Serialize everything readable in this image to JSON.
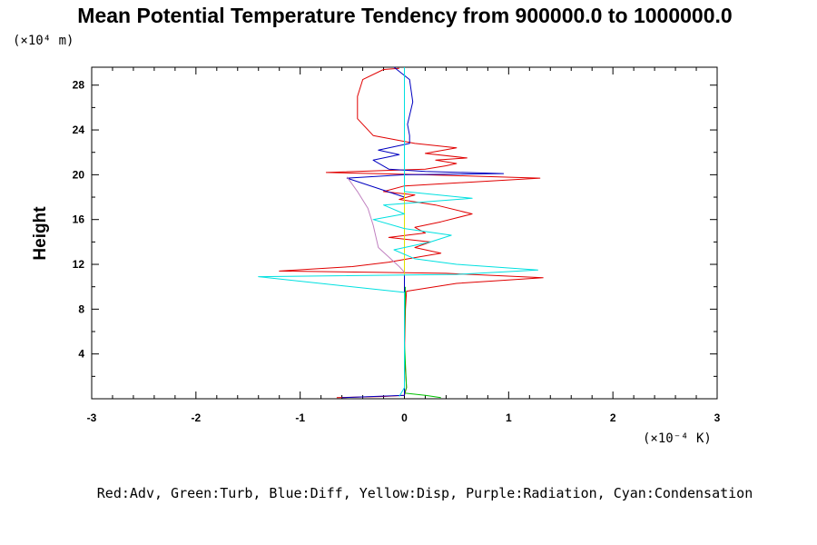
{
  "chart_data": {
    "type": "line",
    "title": "Mean Potential Temperature Tendency from 900000.0 to 1000000.0",
    "ylabel": "Height",
    "xlabel": "",
    "x_unit_label": "(×10⁻⁴ K)",
    "y_unit_label": "(×10⁴ m)",
    "xlim": [
      -3,
      3
    ],
    "ylim": [
      0,
      29.6
    ],
    "x_ticks": [
      "-3",
      "-2",
      "-1",
      "0",
      "1",
      "2",
      "3"
    ],
    "y_ticks": [
      "4",
      "8",
      "12",
      "16",
      "20",
      "24",
      "28"
    ],
    "grid": false,
    "legend_text": "Red:Adv, Green:Turb, Blue:Diff, Yellow:Disp, Purple:Radiation, Cyan:Condensation",
    "series": [
      {
        "name": "Adv",
        "color": "#e00000",
        "points": [
          [
            -0.65,
            0.1
          ],
          [
            -0.2,
            0.2
          ],
          [
            0.0,
            0.3
          ],
          [
            0.02,
            1
          ],
          [
            0.0,
            4
          ],
          [
            0.01,
            8
          ],
          [
            0.02,
            9.6
          ],
          [
            0.5,
            10.3
          ],
          [
            1.33,
            10.8
          ],
          [
            0.4,
            11.2
          ],
          [
            -0.3,
            11.3
          ],
          [
            -1.2,
            11.4
          ],
          [
            -0.5,
            11.8
          ],
          [
            -0.15,
            12.2
          ],
          [
            0.1,
            12.6
          ],
          [
            0.35,
            13.0
          ],
          [
            0.1,
            13.5
          ],
          [
            0.25,
            14.0
          ],
          [
            -0.15,
            14.4
          ],
          [
            0.2,
            14.8
          ],
          [
            0.1,
            15.3
          ],
          [
            0.35,
            15.8
          ],
          [
            0.65,
            16.5
          ],
          [
            0.3,
            17.3
          ],
          [
            -0.05,
            17.8
          ],
          [
            0.1,
            18.2
          ],
          [
            -0.2,
            18.5
          ],
          [
            0.0,
            19.0
          ],
          [
            1.3,
            19.7
          ],
          [
            0.2,
            20.0
          ],
          [
            -0.75,
            20.2
          ],
          [
            0.2,
            20.5
          ],
          [
            0.4,
            20.8
          ],
          [
            0.5,
            21.0
          ],
          [
            0.3,
            21.3
          ],
          [
            0.6,
            21.5
          ],
          [
            0.2,
            21.9
          ],
          [
            0.5,
            22.4
          ],
          [
            0.1,
            22.8
          ],
          [
            -0.3,
            23.5
          ],
          [
            -0.45,
            25.0
          ],
          [
            -0.45,
            27.0
          ],
          [
            -0.4,
            28.5
          ],
          [
            -0.2,
            29.4
          ],
          [
            -0.05,
            29.5
          ]
        ]
      },
      {
        "name": "Turb",
        "color": "#00c000",
        "points": [
          [
            0.35,
            0.1
          ],
          [
            0.2,
            0.3
          ],
          [
            0.0,
            0.5
          ],
          [
            0.02,
            1
          ],
          [
            0.0,
            5
          ],
          [
            0.01,
            10
          ]
        ]
      },
      {
        "name": "Diff",
        "color": "#0000c0",
        "points": [
          [
            -0.6,
            0.1
          ],
          [
            0.0,
            0.3
          ],
          [
            0.0,
            11
          ],
          [
            0.0,
            18
          ],
          [
            -0.55,
            19.7
          ],
          [
            0.0,
            20.0
          ],
          [
            0.95,
            20.1
          ],
          [
            0.2,
            20.3
          ],
          [
            -0.15,
            20.5
          ],
          [
            -0.3,
            21.3
          ],
          [
            -0.05,
            21.8
          ],
          [
            -0.25,
            22.2
          ],
          [
            0.05,
            22.8
          ],
          [
            0.05,
            23.5
          ],
          [
            0.03,
            24.5
          ],
          [
            0.08,
            26.5
          ],
          [
            0.05,
            28.5
          ],
          [
            -0.1,
            29.6
          ]
        ]
      },
      {
        "name": "Disp",
        "color": "#e0e000",
        "points": [
          [
            0.0,
            11
          ],
          [
            0.0,
            19
          ]
        ]
      },
      {
        "name": "Radiation",
        "color": "#c080c0",
        "points": [
          [
            -0.55,
            19.8
          ],
          [
            -0.45,
            18.5
          ],
          [
            -0.35,
            17.0
          ],
          [
            -0.3,
            15.5
          ],
          [
            -0.25,
            13.5
          ],
          [
            -0.05,
            11.8
          ],
          [
            0.0,
            11.3
          ]
        ]
      },
      {
        "name": "Condensation",
        "color": "#00e0e0",
        "points": [
          [
            -0.05,
            0.2
          ],
          [
            0.0,
            1.0
          ],
          [
            0.0,
            9.5
          ],
          [
            -1.4,
            10.9
          ],
          [
            0.5,
            11.1
          ],
          [
            1.28,
            11.5
          ],
          [
            0.5,
            12.0
          ],
          [
            0.1,
            12.5
          ],
          [
            -0.1,
            13.3
          ],
          [
            0.25,
            14.0
          ],
          [
            0.45,
            14.6
          ],
          [
            0.0,
            15.2
          ],
          [
            -0.3,
            16.0
          ],
          [
            0.0,
            16.5
          ],
          [
            -0.2,
            17.3
          ],
          [
            0.65,
            17.9
          ],
          [
            0.0,
            18.5
          ],
          [
            0.0,
            29.6
          ]
        ]
      }
    ]
  }
}
